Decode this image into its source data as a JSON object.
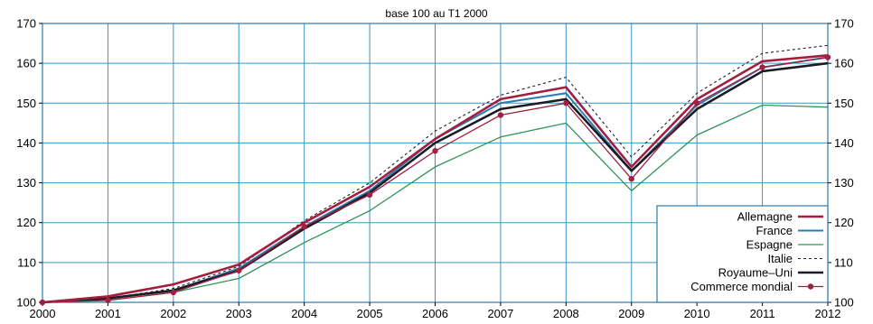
{
  "chart_data": {
    "type": "line",
    "title": "",
    "subtitle": "base 100 au T1 2000",
    "xlabel": "",
    "ylabel": "",
    "x": [
      2000,
      2001,
      2002,
      2003,
      2004,
      2005,
      2006,
      2007,
      2008,
      2009,
      2010,
      2011,
      2012
    ],
    "x_tick_labels": [
      "2000",
      "2001",
      "2002",
      "2003",
      "2004",
      "2005",
      "2006",
      "2007",
      "2008",
      "2009",
      "2010",
      "2011",
      "2012"
    ],
    "y_ticks": [
      100,
      110,
      120,
      130,
      140,
      150,
      160,
      170
    ],
    "ylim": [
      100,
      170
    ],
    "xlim": [
      2000,
      2012
    ],
    "grid": true,
    "legend_position": "bottom-right",
    "series": [
      {
        "name": "Allemagne",
        "color": "#a31f3f",
        "style": "solid-thick",
        "values": [
          100,
          101.5,
          104.5,
          109.5,
          120,
          129,
          141,
          151,
          154,
          134,
          151,
          160.5,
          162
        ]
      },
      {
        "name": "France",
        "color": "#2a7bb0",
        "style": "solid",
        "values": [
          100,
          101,
          103,
          108.5,
          119,
          128,
          141,
          150,
          152.5,
          133,
          149.5,
          159,
          161.5
        ]
      },
      {
        "name": "Espagne",
        "color": "#2e9457",
        "style": "solid-thin",
        "values": [
          100,
          100.5,
          102.5,
          106,
          115,
          123,
          134,
          141.5,
          145,
          128,
          142,
          149.5,
          149
        ]
      },
      {
        "name": "Italie",
        "color": "#222222",
        "style": "dashed",
        "values": [
          100,
          101,
          103.5,
          109,
          120.5,
          130,
          143,
          152,
          156.5,
          136.5,
          152.5,
          162.5,
          164.5
        ]
      },
      {
        "name": "Royaume–Uni",
        "color": "#1b1b24",
        "style": "solid-thick",
        "values": [
          100,
          101,
          103,
          108,
          118.5,
          127.5,
          140,
          148.5,
          151,
          133,
          148.5,
          158,
          160
        ]
      },
      {
        "name": "Commerce mondial",
        "color": "#a31f3f",
        "style": "solid-markers",
        "values": [
          100,
          100.5,
          102.5,
          108,
          119,
          127,
          138,
          147,
          150,
          131,
          150,
          159,
          161.5
        ]
      }
    ]
  }
}
